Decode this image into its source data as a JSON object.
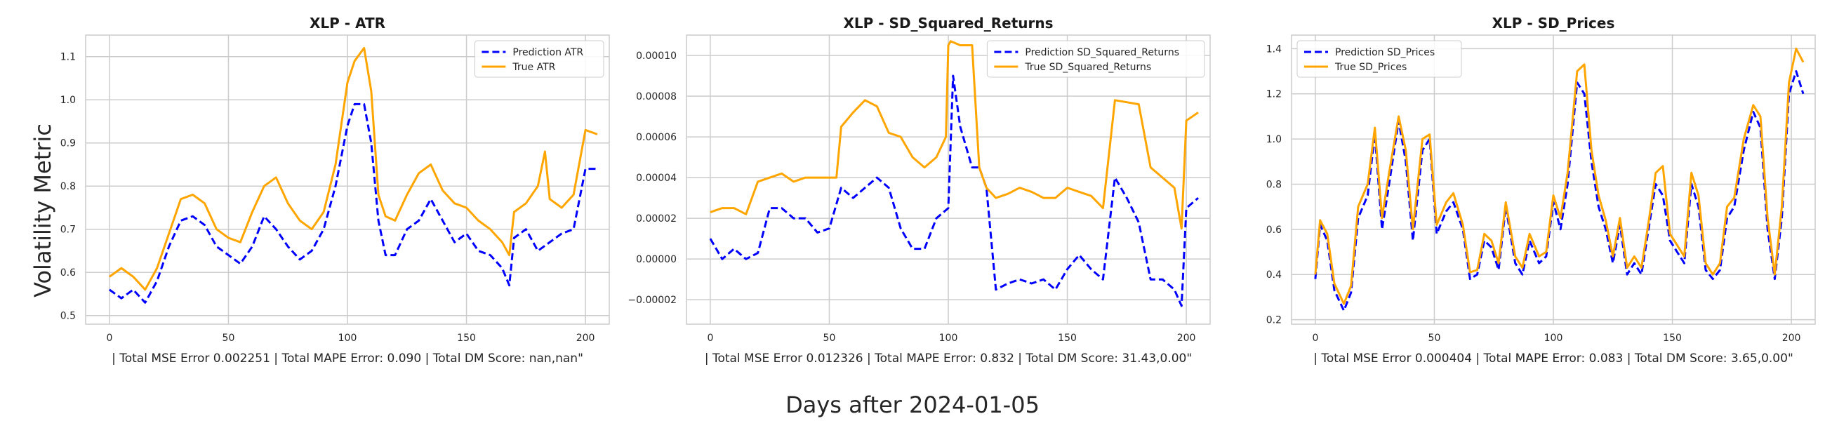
{
  "figure": {
    "ylabel": "Volatility Metric",
    "xlabel": "Days after 2024-01-05"
  },
  "colors": {
    "prediction": "#0000ff",
    "true": "#ffa500",
    "grid": "#cccccc",
    "frame": "#cccccc"
  },
  "chart_data": [
    {
      "type": "line",
      "title": "XLP - ATR",
      "caption": "| Total MSE Error 0.002251 | Total MAPE Error: 0.090 | Total DM Score: nan,nan\"",
      "xlim": [
        -10,
        210
      ],
      "ylim": [
        0.48,
        1.15
      ],
      "xticks": [
        0,
        50,
        100,
        150,
        200
      ],
      "yticks": [
        0.5,
        0.6,
        0.7,
        0.8,
        0.9,
        1.0,
        1.1
      ],
      "ytick_labels": [
        "0.5",
        "0.6",
        "0.7",
        "0.8",
        "0.9",
        "1.0",
        "1.1"
      ],
      "legend_position": "upper right",
      "series": [
        {
          "name": "Prediction ATR",
          "style": "dashed",
          "color": "#0000ff",
          "x": [
            0,
            5,
            10,
            15,
            20,
            25,
            30,
            35,
            40,
            45,
            50,
            55,
            60,
            65,
            70,
            75,
            80,
            85,
            90,
            95,
            100,
            103,
            107,
            110,
            113,
            116,
            120,
            125,
            130,
            135,
            140,
            145,
            150,
            155,
            160,
            165,
            168,
            170,
            175,
            180,
            185,
            190,
            195,
            200,
            205
          ],
          "y": [
            0.56,
            0.54,
            0.56,
            0.53,
            0.58,
            0.66,
            0.72,
            0.73,
            0.71,
            0.66,
            0.64,
            0.62,
            0.66,
            0.73,
            0.7,
            0.66,
            0.63,
            0.65,
            0.7,
            0.8,
            0.94,
            0.99,
            0.99,
            0.9,
            0.72,
            0.64,
            0.64,
            0.7,
            0.72,
            0.77,
            0.72,
            0.67,
            0.69,
            0.65,
            0.64,
            0.61,
            0.57,
            0.68,
            0.7,
            0.65,
            0.67,
            0.69,
            0.7,
            0.84,
            0.84
          ]
        },
        {
          "name": "True ATR",
          "style": "solid",
          "color": "#ffa500",
          "x": [
            0,
            5,
            10,
            15,
            20,
            25,
            30,
            35,
            40,
            45,
            50,
            55,
            60,
            65,
            70,
            75,
            80,
            85,
            90,
            95,
            100,
            103,
            107,
            110,
            113,
            116,
            120,
            125,
            130,
            135,
            140,
            145,
            150,
            155,
            160,
            165,
            168,
            170,
            175,
            180,
            183,
            185,
            190,
            195,
            200,
            205
          ],
          "y": [
            0.59,
            0.61,
            0.59,
            0.56,
            0.61,
            0.69,
            0.77,
            0.78,
            0.76,
            0.7,
            0.68,
            0.67,
            0.74,
            0.8,
            0.82,
            0.76,
            0.72,
            0.7,
            0.74,
            0.85,
            1.04,
            1.09,
            1.12,
            1.02,
            0.78,
            0.73,
            0.72,
            0.78,
            0.83,
            0.85,
            0.79,
            0.76,
            0.75,
            0.72,
            0.7,
            0.67,
            0.64,
            0.74,
            0.76,
            0.8,
            0.88,
            0.77,
            0.75,
            0.78,
            0.93,
            0.92
          ]
        }
      ]
    },
    {
      "type": "line",
      "title": "XLP - SD_Squared_Returns",
      "caption": "| Total MSE Error 0.012326 | Total MAPE Error: 0.832 | Total DM Score: 31.43,0.00\"",
      "xlim": [
        -10,
        210
      ],
      "ylim": [
        -3.2e-05,
        0.00011
      ],
      "xticks": [
        0,
        50,
        100,
        150,
        200
      ],
      "yticks": [
        -2e-05,
        0.0,
        2e-05,
        4e-05,
        6e-05,
        8e-05,
        0.0001
      ],
      "ytick_labels": [
        "−0.00002",
        "0.00000",
        "0.00002",
        "0.00004",
        "0.00006",
        "0.00008",
        "0.00010"
      ],
      "legend_position": "upper right",
      "series": [
        {
          "name": "Prediction SD_Squared_Returns",
          "style": "dashed",
          "color": "#0000ff",
          "x": [
            0,
            5,
            10,
            15,
            20,
            25,
            30,
            35,
            40,
            45,
            50,
            55,
            60,
            65,
            70,
            75,
            80,
            85,
            90,
            95,
            100,
            102,
            105,
            110,
            113,
            116,
            120,
            125,
            130,
            135,
            140,
            145,
            150,
            155,
            160,
            165,
            170,
            175,
            180,
            185,
            190,
            195,
            198,
            200,
            205
          ],
          "y": [
            1e-05,
            0.0,
            5e-06,
            0.0,
            3e-06,
            2.5e-05,
            2.5e-05,
            2e-05,
            2e-05,
            1.3e-05,
            1.5e-05,
            3.5e-05,
            3e-05,
            3.5e-05,
            4e-05,
            3.5e-05,
            1.5e-05,
            5e-06,
            5e-06,
            2e-05,
            2.5e-05,
            9e-05,
            6.5e-05,
            4.5e-05,
            4.5e-05,
            3.5e-05,
            -1.5e-05,
            -1.2e-05,
            -1e-05,
            -1.2e-05,
            -1e-05,
            -1.5e-05,
            -5e-06,
            2e-06,
            -5e-06,
            -1e-05,
            4e-05,
            3e-05,
            1.8e-05,
            -1e-05,
            -1e-05,
            -1.5e-05,
            -2.3e-05,
            2.5e-05,
            3e-05
          ]
        },
        {
          "name": "True SD_Squared_Returns",
          "style": "solid",
          "color": "#ffa500",
          "x": [
            0,
            5,
            10,
            15,
            20,
            25,
            30,
            35,
            40,
            45,
            50,
            53,
            55,
            60,
            65,
            70,
            75,
            80,
            85,
            90,
            95,
            99,
            100,
            101,
            105,
            110,
            113,
            116,
            120,
            125,
            130,
            135,
            140,
            145,
            150,
            155,
            160,
            165,
            170,
            175,
            180,
            185,
            190,
            195,
            198,
            200,
            205
          ],
          "y": [
            2.3e-05,
            2.5e-05,
            2.5e-05,
            2.2e-05,
            3.8e-05,
            4e-05,
            4.2e-05,
            3.8e-05,
            4e-05,
            4e-05,
            4e-05,
            4e-05,
            6.5e-05,
            7.2e-05,
            7.8e-05,
            7.5e-05,
            6.2e-05,
            6e-05,
            5e-05,
            4.5e-05,
            5e-05,
            6e-05,
            0.000105,
            0.000107,
            0.000105,
            0.000105,
            4.5e-05,
            3.5e-05,
            3e-05,
            3.2e-05,
            3.5e-05,
            3.3e-05,
            3e-05,
            3e-05,
            3.5e-05,
            3.3e-05,
            3.1e-05,
            2.5e-05,
            7.8e-05,
            7.7e-05,
            7.6e-05,
            4.5e-05,
            4e-05,
            3.5e-05,
            1.5e-05,
            6.8e-05,
            7.2e-05
          ]
        }
      ]
    },
    {
      "type": "line",
      "title": "XLP - SD_Prices",
      "caption": "| Total MSE Error 0.000404 | Total MAPE Error: 0.083 | Total DM Score: 3.65,0.00\"",
      "xlim": [
        -10,
        210
      ],
      "ylim": [
        0.18,
        1.46
      ],
      "xticks": [
        0,
        50,
        100,
        150,
        200
      ],
      "yticks": [
        0.2,
        0.4,
        0.6,
        0.8,
        1.0,
        1.2,
        1.4
      ],
      "ytick_labels": [
        "0.2",
        "0.4",
        "0.6",
        "0.8",
        "1.0",
        "1.2",
        "1.4"
      ],
      "legend_position": "upper left",
      "series": [
        {
          "name": "Prediction SD_Prices",
          "style": "dashed",
          "color": "#0000ff",
          "x": [
            0,
            2,
            5,
            8,
            12,
            15,
            18,
            22,
            25,
            28,
            31,
            35,
            38,
            41,
            45,
            48,
            51,
            55,
            58,
            62,
            65,
            68,
            71,
            74,
            77,
            80,
            84,
            87,
            90,
            94,
            97,
            100,
            103,
            106,
            110,
            113,
            116,
            119,
            122,
            125,
            128,
            131,
            134,
            137,
            140,
            143,
            146,
            149,
            152,
            155,
            158,
            161,
            164,
            167,
            170,
            173,
            176,
            180,
            184,
            187,
            190,
            193,
            196,
            199,
            202,
            205
          ],
          "y": [
            0.38,
            0.62,
            0.55,
            0.33,
            0.24,
            0.32,
            0.65,
            0.75,
            1.02,
            0.6,
            0.8,
            1.08,
            0.9,
            0.55,
            0.95,
            1.0,
            0.58,
            0.68,
            0.72,
            0.6,
            0.38,
            0.4,
            0.55,
            0.52,
            0.42,
            0.7,
            0.45,
            0.4,
            0.55,
            0.45,
            0.48,
            0.72,
            0.6,
            0.8,
            1.25,
            1.2,
            0.9,
            0.7,
            0.6,
            0.45,
            0.62,
            0.4,
            0.45,
            0.4,
            0.6,
            0.8,
            0.75,
            0.55,
            0.5,
            0.45,
            0.8,
            0.7,
            0.42,
            0.38,
            0.42,
            0.65,
            0.7,
            0.95,
            1.12,
            1.05,
            0.6,
            0.38,
            0.65,
            1.2,
            1.3,
            1.2
          ]
        },
        {
          "name": "True SD_Prices",
          "style": "solid",
          "color": "#ffa500",
          "x": [
            0,
            2,
            5,
            8,
            12,
            15,
            18,
            22,
            25,
            28,
            31,
            35,
            38,
            41,
            45,
            48,
            51,
            55,
            58,
            62,
            65,
            68,
            71,
            74,
            77,
            80,
            84,
            87,
            90,
            94,
            97,
            100,
            103,
            106,
            110,
            113,
            116,
            119,
            122,
            125,
            128,
            131,
            134,
            137,
            140,
            143,
            146,
            149,
            152,
            155,
            158,
            161,
            164,
            167,
            170,
            173,
            176,
            180,
            184,
            187,
            190,
            193,
            196,
            199,
            202,
            205
          ],
          "y": [
            0.4,
            0.64,
            0.58,
            0.36,
            0.27,
            0.35,
            0.7,
            0.8,
            1.05,
            0.65,
            0.85,
            1.1,
            0.95,
            0.6,
            1.0,
            1.02,
            0.62,
            0.72,
            0.76,
            0.62,
            0.41,
            0.42,
            0.58,
            0.55,
            0.45,
            0.72,
            0.48,
            0.43,
            0.58,
            0.48,
            0.5,
            0.75,
            0.65,
            0.85,
            1.3,
            1.33,
            0.95,
            0.75,
            0.64,
            0.48,
            0.65,
            0.43,
            0.48,
            0.43,
            0.63,
            0.85,
            0.88,
            0.58,
            0.53,
            0.48,
            0.85,
            0.75,
            0.45,
            0.4,
            0.45,
            0.7,
            0.74,
            1.0,
            1.15,
            1.1,
            0.65,
            0.4,
            0.7,
            1.25,
            1.4,
            1.34
          ]
        }
      ]
    }
  ]
}
